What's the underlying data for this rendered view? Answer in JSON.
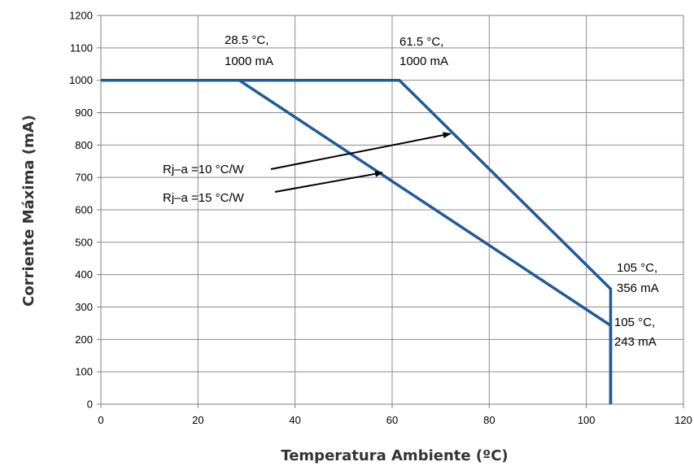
{
  "chart_data": {
    "type": "line",
    "title": "",
    "xlabel": "Temperatura Ambiente (ºC)",
    "ylabel": "Corriente Máxima (mA)",
    "xlim": [
      0,
      120
    ],
    "ylim": [
      0,
      1200
    ],
    "xticks": [
      0,
      20,
      40,
      60,
      80,
      100,
      120
    ],
    "yticks": [
      0,
      100,
      200,
      300,
      400,
      500,
      600,
      700,
      800,
      900,
      1000,
      1100,
      1200
    ],
    "grid": true,
    "series_color": "#1f5a99",
    "series": [
      {
        "points": [
          [
            0,
            1000
          ],
          [
            61.5,
            1000
          ],
          [
            105,
            356
          ],
          [
            105,
            0
          ]
        ]
      },
      {
        "points": [
          [
            0,
            1000
          ],
          [
            28.5,
            1000
          ],
          [
            105,
            243
          ],
          [
            105,
            0
          ]
        ]
      }
    ],
    "annotations": [
      {
        "line1": "28.5 °C,",
        "line2": "1000 mA",
        "x": 28.5,
        "y": 1000
      },
      {
        "line1": "61.5 °C,",
        "line2": "1000 mA",
        "x": 61.5,
        "y": 1000
      },
      {
        "line1": "105 °C,",
        "line2": "356 mA",
        "x": 105,
        "y": 356
      },
      {
        "line1": "105 °C,",
        "line2": "243 mA",
        "x": 105,
        "y": 243
      }
    ],
    "arrow_labels": [
      {
        "text": "Rj–a =10  °C/W",
        "target": [
          72,
          835
        ]
      },
      {
        "text": "Rj–a =15  °C/W",
        "target": [
          58,
          715
        ]
      }
    ]
  }
}
